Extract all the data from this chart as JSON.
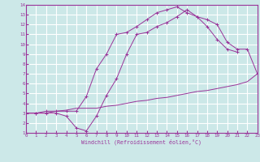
{
  "bg_color": "#cce8e8",
  "line_color": "#993399",
  "grid_color": "#ffffff",
  "xlim": [
    0,
    23
  ],
  "ylim": [
    1,
    14
  ],
  "xticks": [
    0,
    1,
    2,
    3,
    4,
    5,
    6,
    7,
    8,
    9,
    10,
    11,
    12,
    13,
    14,
    15,
    16,
    17,
    18,
    19,
    20,
    21,
    22,
    23
  ],
  "yticks": [
    1,
    2,
    3,
    4,
    5,
    6,
    7,
    8,
    9,
    10,
    11,
    12,
    13,
    14
  ],
  "xlabel": "Windchill (Refroidissement éolien,°C)",
  "line1_x": [
    0,
    1,
    2,
    3,
    4,
    5,
    6,
    7,
    8,
    9,
    10,
    11,
    12,
    13,
    14,
    15,
    16,
    17,
    18,
    19,
    20,
    21
  ],
  "line1_y": [
    3.0,
    3.0,
    3.0,
    3.0,
    2.7,
    1.5,
    1.2,
    2.7,
    4.8,
    6.5,
    9.0,
    11.0,
    11.2,
    11.8,
    12.2,
    12.8,
    13.5,
    12.8,
    11.8,
    10.5,
    9.5,
    9.2
  ],
  "line2_x": [
    0,
    1,
    2,
    3,
    4,
    5,
    6,
    7,
    8,
    9,
    10,
    11,
    12,
    13,
    14,
    15,
    16,
    17,
    18,
    19,
    20,
    21,
    22,
    23
  ],
  "line2_y": [
    3.0,
    3.0,
    3.2,
    3.2,
    3.2,
    3.2,
    4.7,
    7.5,
    9.0,
    11.0,
    11.2,
    11.8,
    12.5,
    13.2,
    13.5,
    13.8,
    13.2,
    12.8,
    12.5,
    12.0,
    10.2,
    9.5,
    9.5,
    7.0
  ],
  "line3_x": [
    0,
    1,
    2,
    3,
    4,
    5,
    6,
    7,
    8,
    9,
    10,
    11,
    12,
    13,
    14,
    15,
    16,
    17,
    18,
    19,
    20,
    21,
    22,
    23
  ],
  "line3_y": [
    3.0,
    3.0,
    3.0,
    3.2,
    3.3,
    3.5,
    3.5,
    3.5,
    3.7,
    3.8,
    4.0,
    4.2,
    4.3,
    4.5,
    4.6,
    4.8,
    5.0,
    5.2,
    5.3,
    5.5,
    5.7,
    5.9,
    6.2,
    7.0
  ]
}
